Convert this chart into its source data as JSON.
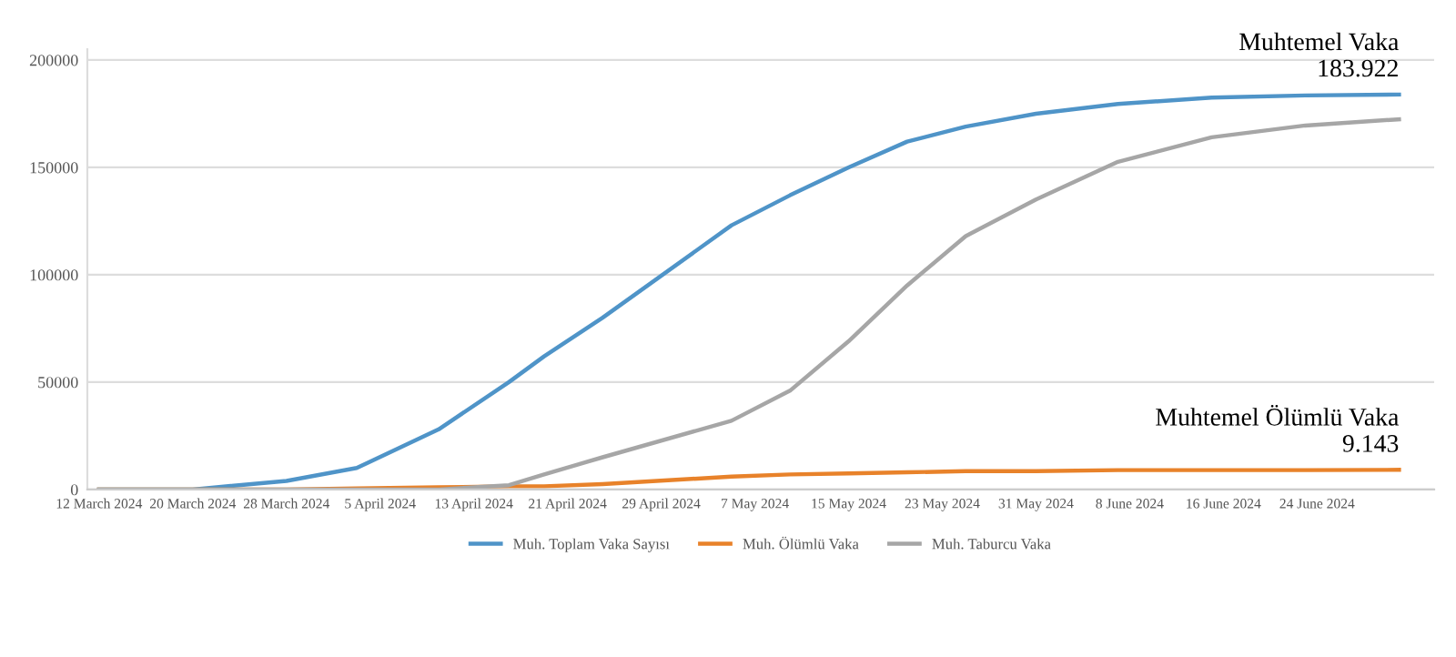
{
  "chart_data": {
    "type": "line",
    "x": [
      "2024-03-12",
      "2024-03-20",
      "2024-03-28",
      "2024-04-03",
      "2024-04-10",
      "2024-04-16",
      "2024-04-19",
      "2024-04-24",
      "2024-05-05",
      "2024-05-10",
      "2024-05-15",
      "2024-05-20",
      "2024-05-25",
      "2024-05-31",
      "2024-06-07",
      "2024-06-15",
      "2024-06-23",
      "2024-07-01"
    ],
    "series": [
      {
        "name": "Muh. Toplam Vaka Sayısı",
        "color": "#4f94c8",
        "values": [
          0,
          0,
          4000,
          10000,
          28000,
          50000,
          62000,
          80000,
          123000,
          137000,
          150000,
          162000,
          169000,
          175000,
          179500,
          182500,
          183500,
          183922
        ]
      },
      {
        "name": "Muh. Ölümlü Vaka",
        "color": "#e8822a",
        "values": [
          0,
          0,
          0,
          500,
          1000,
          1500,
          1500,
          2500,
          6000,
          7000,
          7500,
          8000,
          8500,
          8500,
          9000,
          9000,
          9000,
          9143
        ]
      },
      {
        "name": "Muh. Taburcu Vaka",
        "color": "#a6a6a6",
        "values": [
          0,
          0,
          0,
          0,
          0,
          2000,
          7000,
          15000,
          32000,
          46000,
          69000,
          95000,
          118000,
          135000,
          152600,
          164000,
          169500,
          172400
        ]
      }
    ],
    "xlim": [
      "2024-03-11",
      "2024-07-04"
    ],
    "xticks": [
      {
        "value": "2024-03-12",
        "label": "12 March 2024"
      },
      {
        "value": "2024-03-20",
        "label": "20 March 2024"
      },
      {
        "value": "2024-03-28",
        "label": "28 March 2024"
      },
      {
        "value": "2024-04-05",
        "label": "5 April 2024"
      },
      {
        "value": "2024-04-13",
        "label": "13 April 2024"
      },
      {
        "value": "2024-04-21",
        "label": "21 April 2024"
      },
      {
        "value": "2024-04-29",
        "label": "29 April 2024"
      },
      {
        "value": "2024-05-07",
        "label": "7 May 2024"
      },
      {
        "value": "2024-05-15",
        "label": "15 May 2024"
      },
      {
        "value": "2024-05-23",
        "label": "23 May 2024"
      },
      {
        "value": "2024-05-31",
        "label": "31 May 2024"
      },
      {
        "value": "2024-06-08",
        "label": "8 June 2024"
      },
      {
        "value": "2024-06-16",
        "label": "16 June 2024"
      },
      {
        "value": "2024-06-24",
        "label": "24 June 2024"
      }
    ],
    "ylim": [
      0,
      205000
    ],
    "yticks": [
      0,
      50000,
      100000,
      150000,
      200000
    ],
    "grid": "y",
    "legend": "bottom",
    "marker": "none",
    "line_style": "solid",
    "annotations": [
      {
        "text": "Muhtemel Vaka\n183.922",
        "x": "2024-07-01",
        "y": 183922
      },
      {
        "text": "Muhtemel Ölümlü Vaka\n9.143",
        "x": "2024-07-01",
        "y": 9143
      }
    ]
  }
}
